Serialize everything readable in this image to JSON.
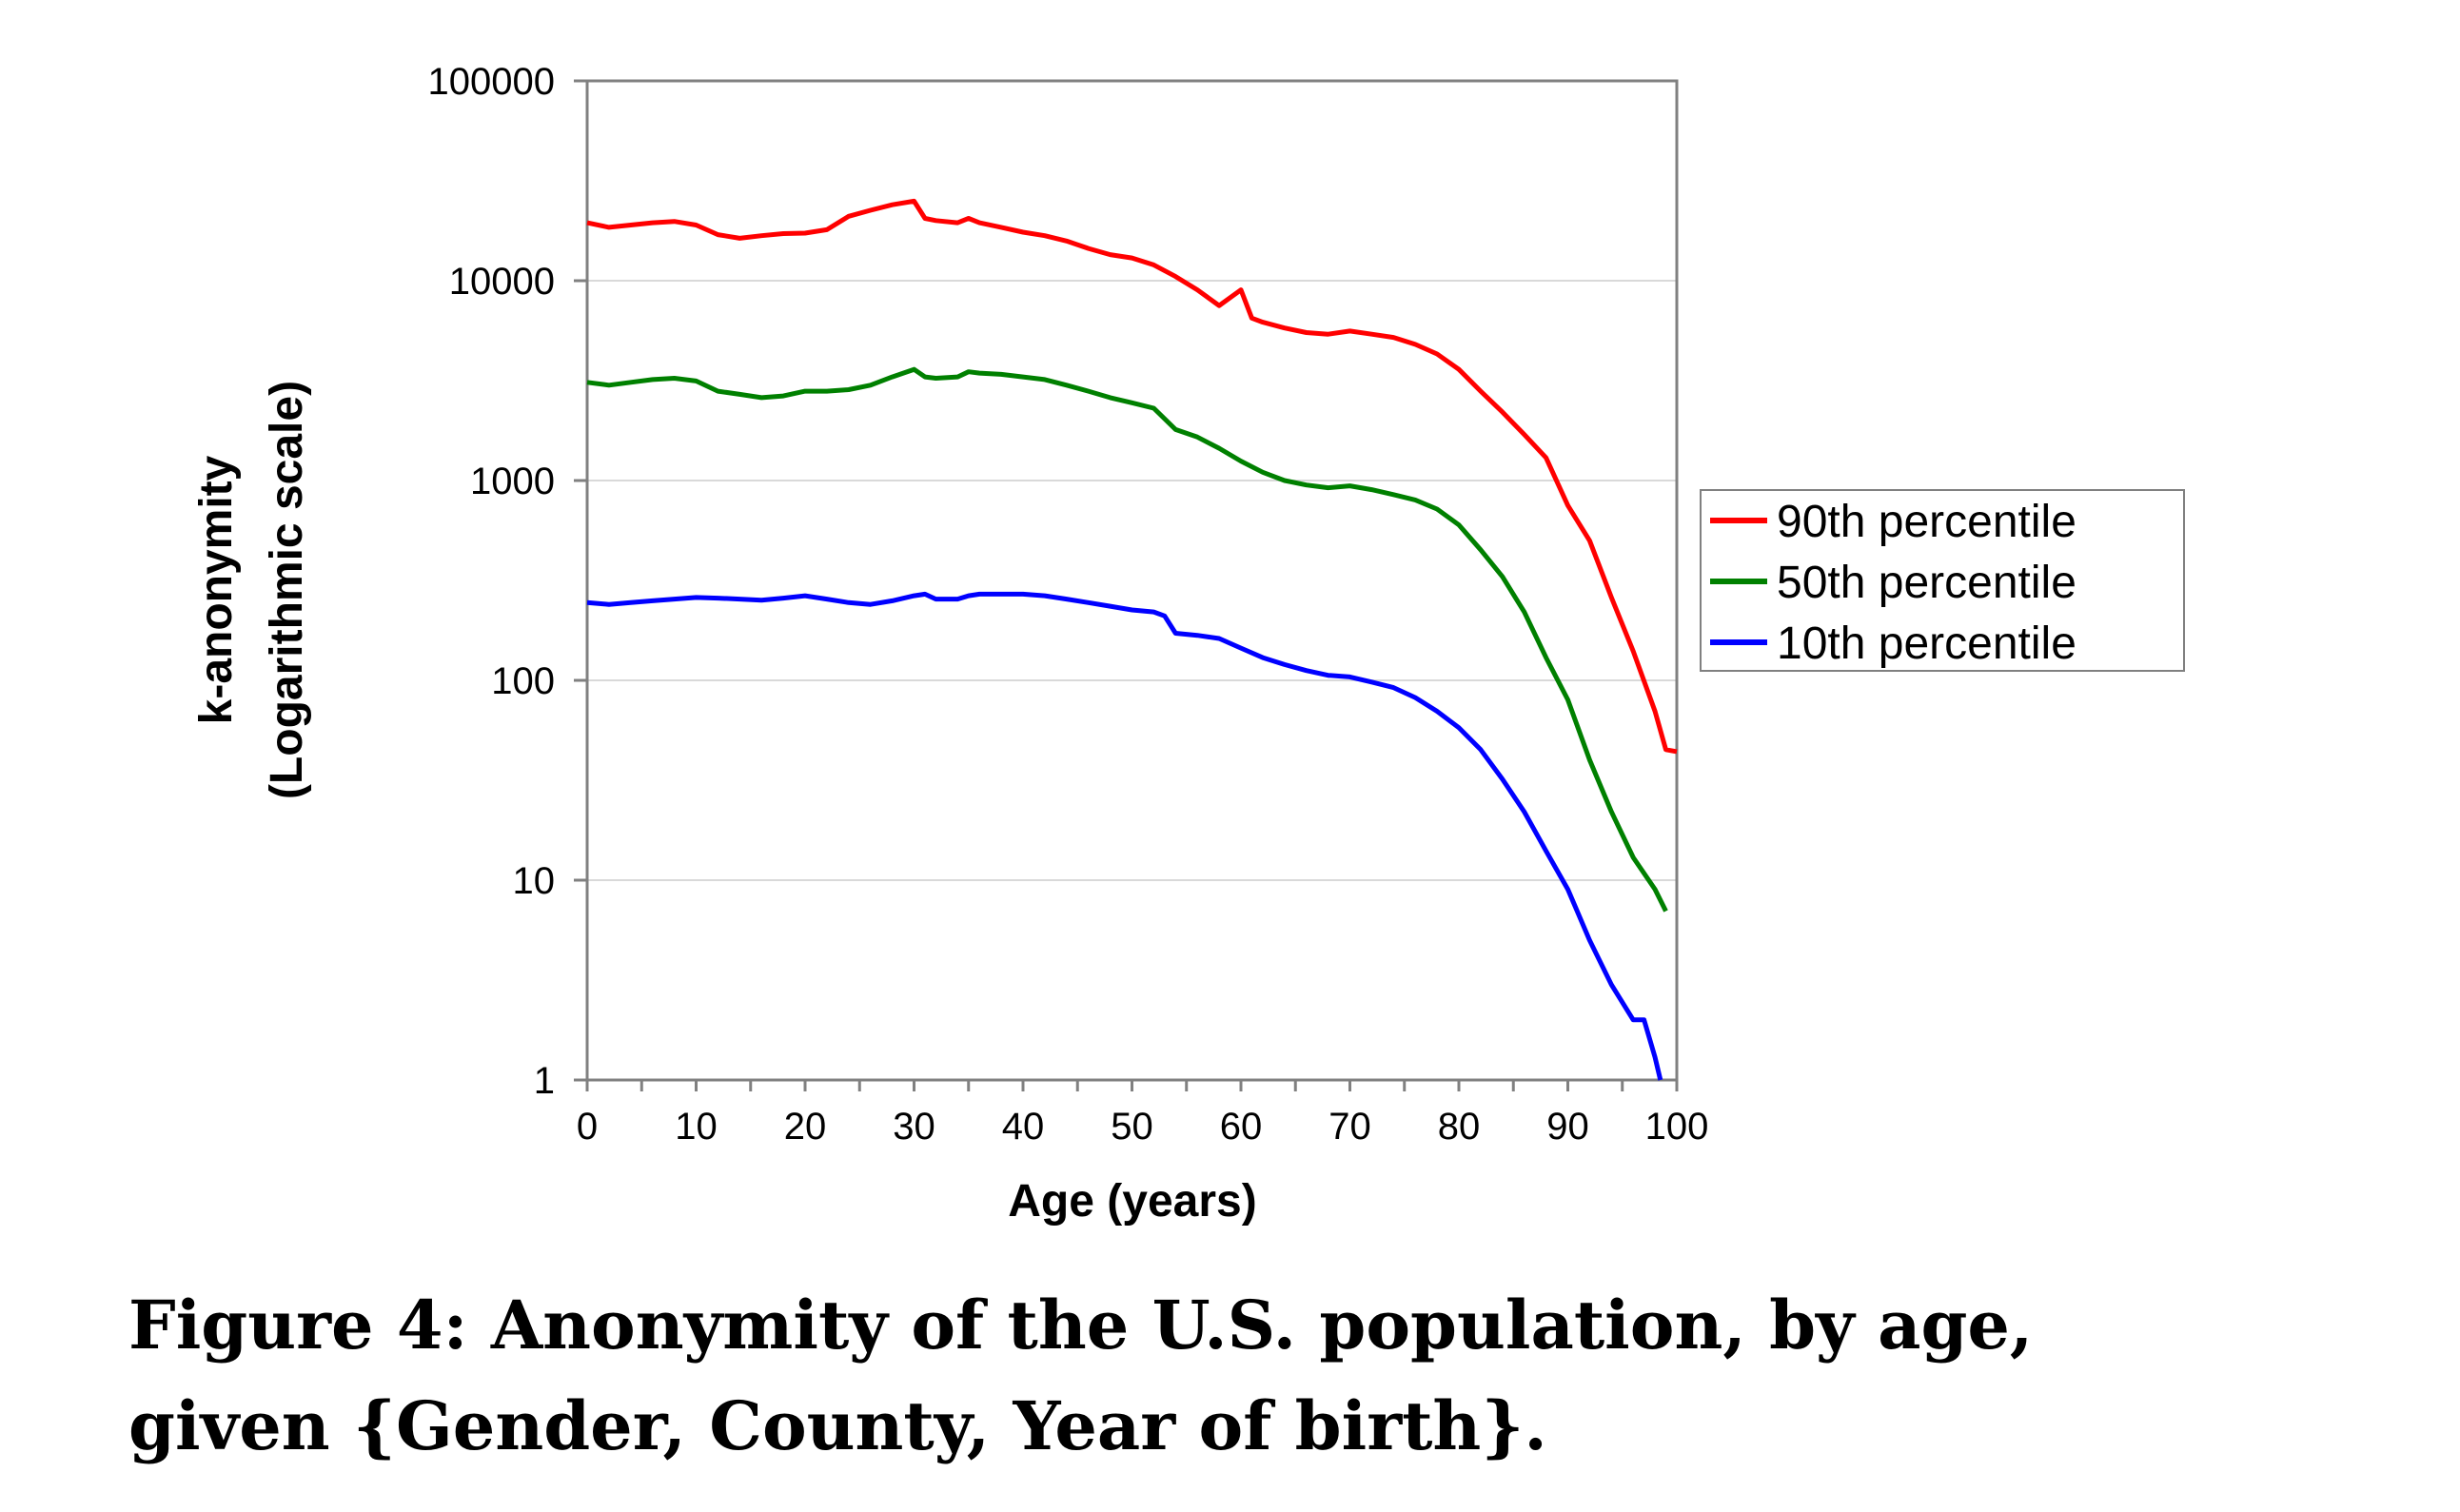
{
  "chart_data": {
    "type": "line",
    "title": "",
    "xlabel": "Age (years)",
    "ylabel_lines": [
      "k-anonymity",
      "(Logarithmic scale)"
    ],
    "xlim": [
      0,
      100
    ],
    "ylim": [
      1,
      100000
    ],
    "yscale": "log",
    "x_ticks": [
      0,
      10,
      20,
      30,
      40,
      50,
      60,
      70,
      80,
      90,
      100
    ],
    "x_tick_labels": [
      "0",
      "10",
      "20",
      "30",
      "40",
      "50",
      "60",
      "70",
      "80",
      "90",
      "100"
    ],
    "y_ticks": [
      1,
      10,
      100,
      1000,
      10000,
      100000
    ],
    "y_tick_labels": [
      "1",
      "10",
      "100",
      "1000",
      "10000",
      "100000"
    ],
    "grid": "horizontal",
    "legend_position": "right",
    "series": [
      {
        "name": "90th percentile",
        "color": "#ff0000",
        "x": [
          0,
          2,
          4,
          6,
          8,
          10,
          12,
          14,
          16,
          18,
          20,
          22,
          24,
          26,
          28,
          30,
          31,
          32,
          34,
          35,
          36,
          38,
          40,
          42,
          44,
          46,
          48,
          50,
          52,
          54,
          56,
          58,
          60,
          61,
          62,
          64,
          66,
          68,
          70,
          72,
          74,
          76,
          78,
          80,
          82,
          84,
          86,
          88,
          90,
          92,
          94,
          96,
          98,
          99,
          100
        ],
        "y": [
          19500,
          18500,
          19000,
          19500,
          19800,
          19000,
          17000,
          16300,
          16800,
          17200,
          17300,
          18000,
          21000,
          22500,
          24000,
          25000,
          20500,
          20000,
          19500,
          20500,
          19500,
          18500,
          17500,
          16800,
          15800,
          14500,
          13500,
          13000,
          12000,
          10500,
          9000,
          7500,
          9000,
          6500,
          6200,
          5800,
          5500,
          5400,
          5600,
          5400,
          5200,
          4800,
          4300,
          3600,
          2800,
          2200,
          1700,
          1300,
          750,
          500,
          260,
          140,
          70,
          45,
          44
        ]
      },
      {
        "name": "50th percentile",
        "color": "#008000",
        "x": [
          0,
          2,
          4,
          6,
          8,
          10,
          12,
          14,
          16,
          18,
          20,
          22,
          24,
          26,
          28,
          30,
          31,
          32,
          34,
          35,
          36,
          38,
          40,
          42,
          44,
          46,
          48,
          50,
          52,
          54,
          56,
          58,
          60,
          62,
          64,
          66,
          68,
          70,
          72,
          74,
          76,
          78,
          80,
          82,
          84,
          86,
          88,
          90,
          92,
          94,
          96,
          98,
          99
        ],
        "y": [
          3100,
          3000,
          3100,
          3200,
          3250,
          3150,
          2800,
          2700,
          2600,
          2650,
          2800,
          2800,
          2850,
          3000,
          3300,
          3600,
          3300,
          3250,
          3300,
          3500,
          3450,
          3400,
          3300,
          3200,
          3000,
          2800,
          2600,
          2450,
          2300,
          1800,
          1650,
          1450,
          1250,
          1100,
          1000,
          950,
          920,
          940,
          900,
          850,
          800,
          720,
          600,
          450,
          330,
          220,
          130,
          80,
          40,
          22,
          13,
          9,
          7
        ]
      },
      {
        "name": "10th percentile",
        "color": "#0000ff",
        "x": [
          0,
          2,
          4,
          6,
          8,
          10,
          12,
          14,
          16,
          18,
          20,
          22,
          24,
          26,
          28,
          30,
          31,
          32,
          34,
          35,
          36,
          38,
          40,
          42,
          44,
          46,
          48,
          50,
          52,
          53,
          54,
          56,
          58,
          60,
          62,
          64,
          66,
          68,
          70,
          72,
          74,
          76,
          78,
          80,
          82,
          84,
          86,
          88,
          90,
          92,
          94,
          96,
          97,
          98,
          98.5
        ],
        "y": [
          245,
          240,
          245,
          250,
          255,
          260,
          258,
          255,
          252,
          258,
          265,
          255,
          245,
          240,
          250,
          265,
          270,
          255,
          255,
          265,
          270,
          270,
          270,
          265,
          255,
          245,
          235,
          225,
          220,
          210,
          172,
          168,
          162,
          145,
          130,
          120,
          112,
          106,
          104,
          98,
          92,
          82,
          70,
          58,
          45,
          32,
          22,
          14,
          9,
          5,
          3,
          2,
          2,
          1.3,
          1
        ]
      }
    ]
  },
  "caption": {
    "line1": "Figure 4: Anonymity of the U.S. population, by age,",
    "line2": "given {Gender, County, Year of birth}."
  }
}
